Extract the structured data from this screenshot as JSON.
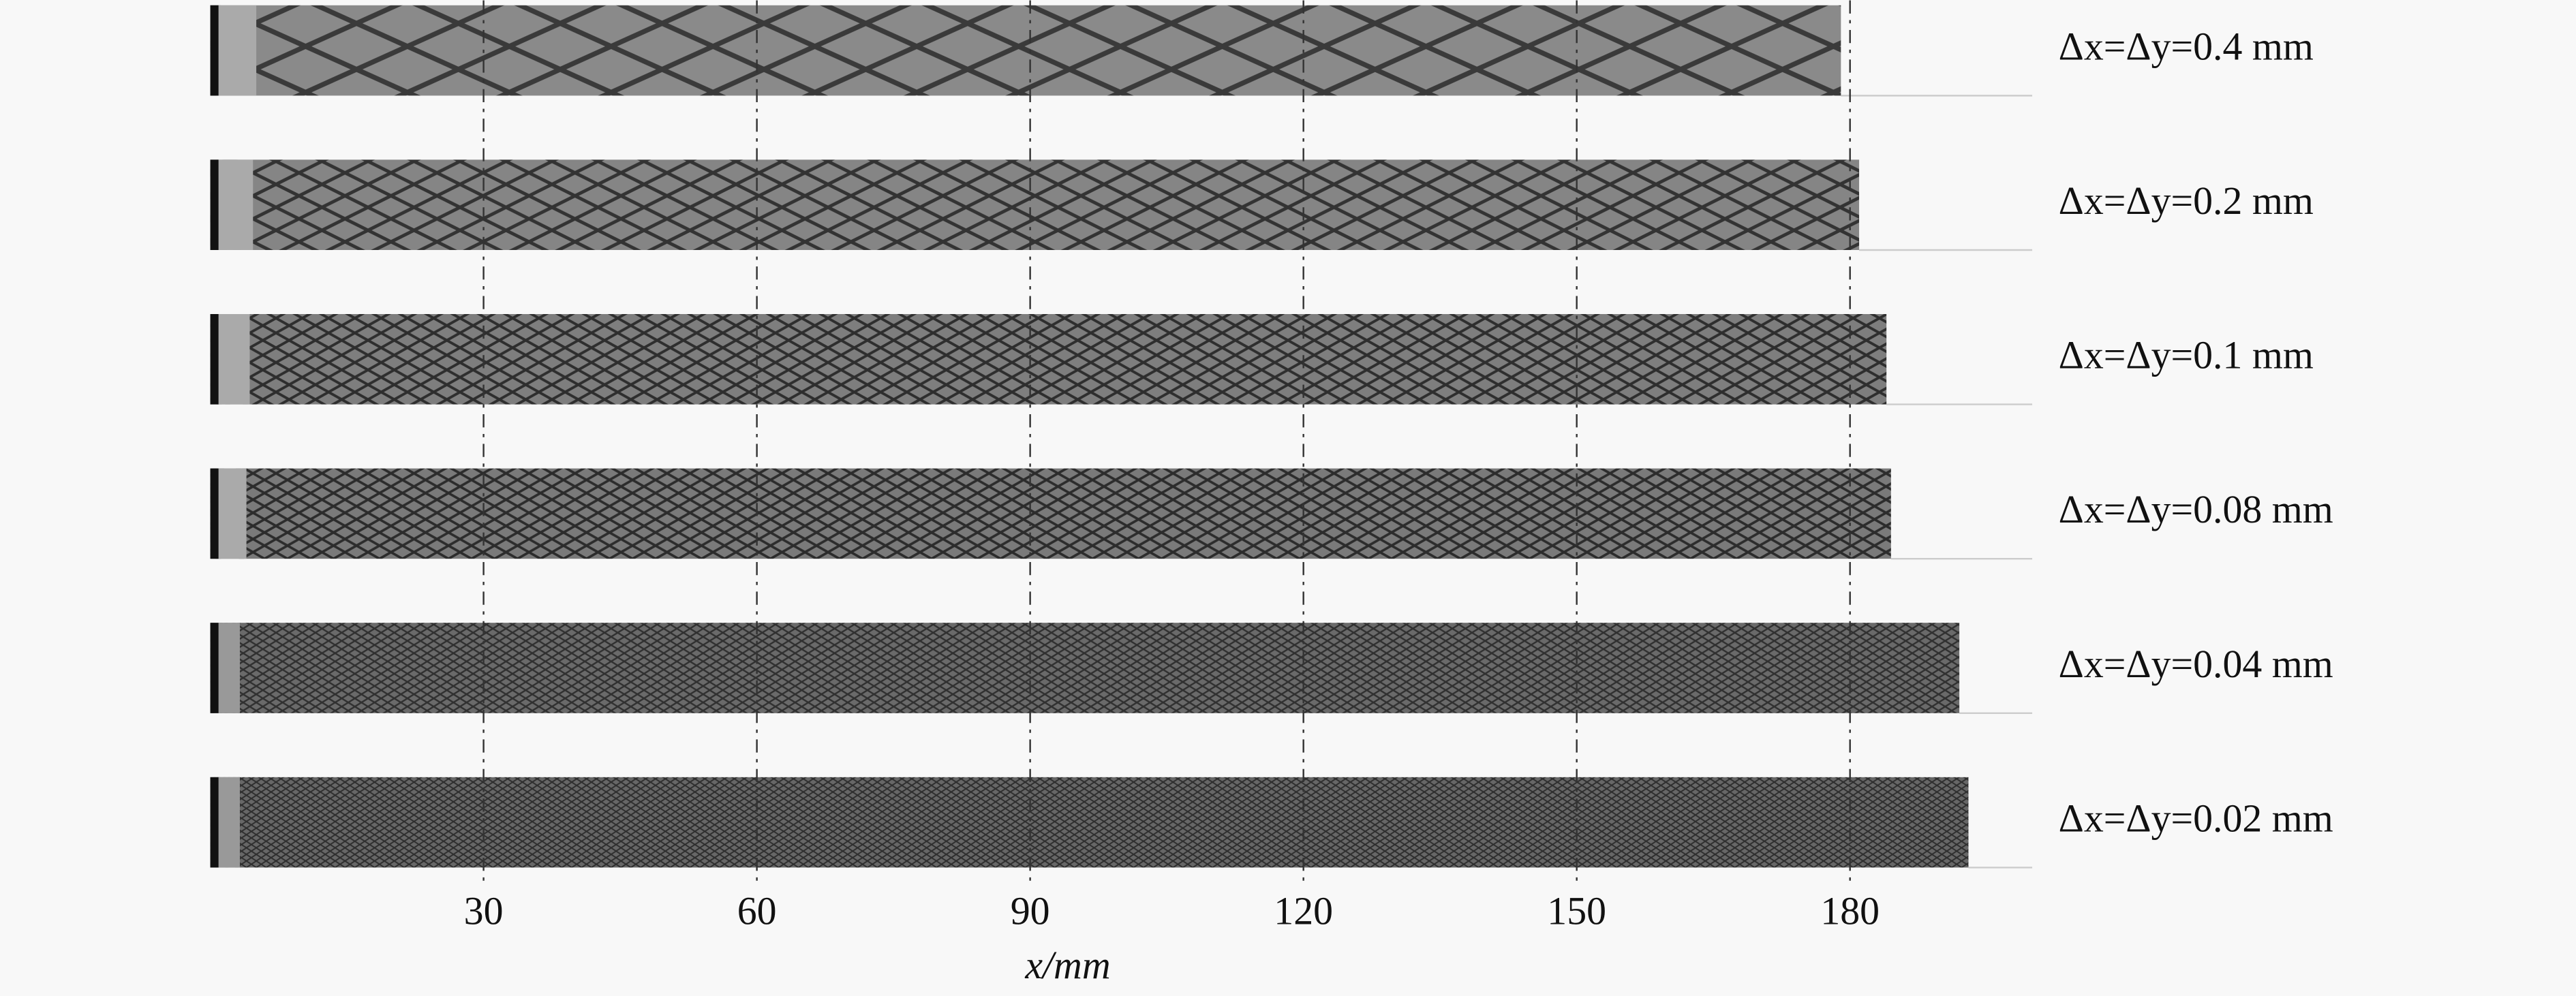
{
  "chart_data": {
    "type": "strip",
    "categories": [
      "Δx=Δy=0.4 mm",
      "Δx=Δy=0.2 mm",
      "Δx=Δy=0.1 mm",
      "Δx=Δy=0.08 mm",
      "Δx=Δy=0.04 mm",
      "Δx=Δy=0.02 mm"
    ],
    "values": [
      179,
      181,
      184,
      184.5,
      192,
      193
    ],
    "xlim": [
      0,
      200
    ],
    "xticks": [
      30,
      60,
      90,
      120,
      150,
      180
    ],
    "x_label": "x/mm",
    "grid": true
  }
}
